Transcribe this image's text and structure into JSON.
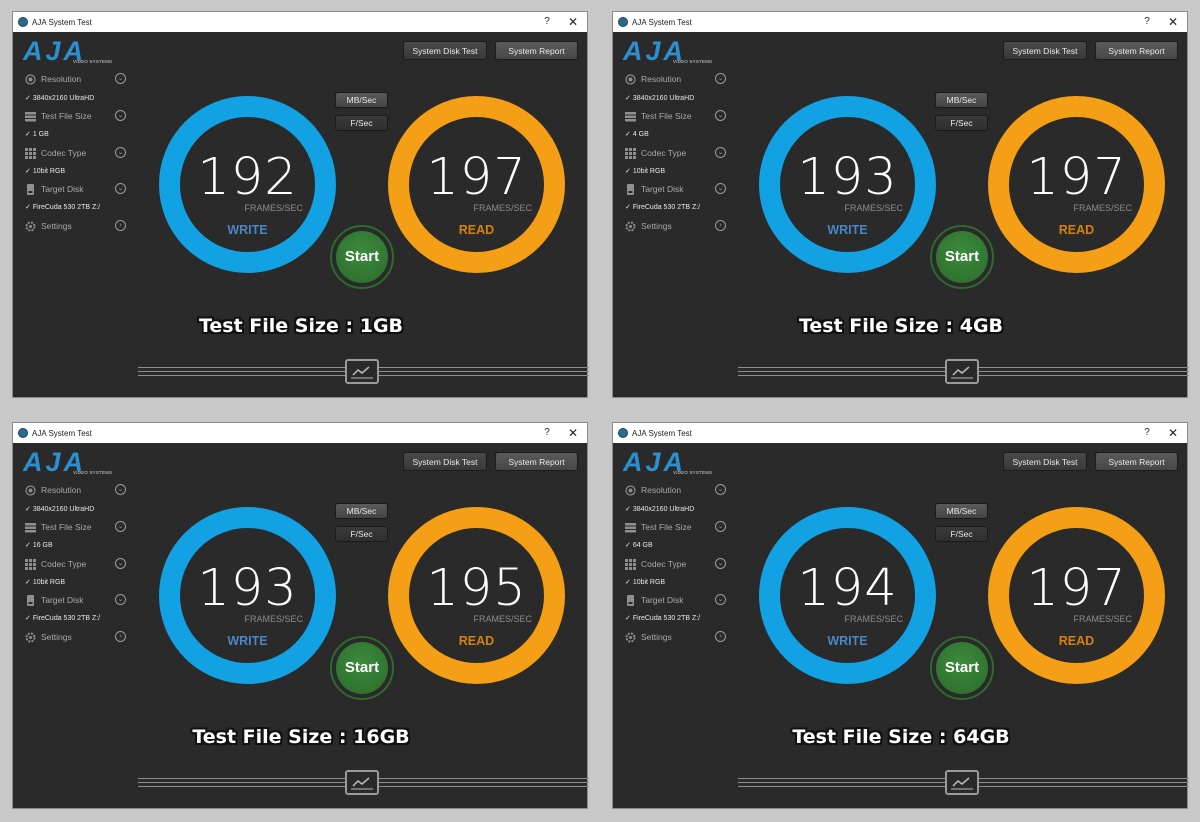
{
  "app_title": "AJA System Test",
  "window_controls": {
    "help": "?",
    "close": "✕"
  },
  "logo": {
    "text": "AJA",
    "subtext": "VIDEO SYSTEMS"
  },
  "toolbar": {
    "disk_test": "System Disk Test",
    "report": "System Report"
  },
  "units": {
    "mb": "MB/Sec",
    "f": "F/Sec"
  },
  "gauges": {
    "fps_label": "FRAMES/SEC",
    "write_label": "WRITE",
    "read_label": "READ"
  },
  "start_label": "Start",
  "sidebar_labels": {
    "resolution": "Resolution",
    "file_size": "Test File Size",
    "codec": "Codec Type",
    "disk": "Target Disk",
    "settings": "Settings"
  },
  "icons": {
    "resolution": "aperture-icon",
    "file_size": "stack-icon",
    "codec": "grid-icon",
    "disk": "disk-icon",
    "settings": "gear-icon",
    "expand": "chevron-down-icon",
    "navigate": "chevron-right-icon",
    "graph": "line-graph-icon"
  },
  "colors": {
    "write": "#12a2e3",
    "read": "#f59f17",
    "start": "#2e7d32"
  },
  "windows": [
    {
      "resolution_value": "3840x2160 UltraHD",
      "file_size_value": "1 GB",
      "codec_value": "10bit RGB",
      "disk_value": "FireCuda 530 2TB Z:/",
      "write": "192",
      "read": "197",
      "caption": "Test File Size : 1GB"
    },
    {
      "resolution_value": "3840x2160 UltraHD",
      "file_size_value": "4 GB",
      "codec_value": "10bit RGB",
      "disk_value": "FireCuda 530 2TB Z:/",
      "write": "193",
      "read": "197",
      "caption": "Test File Size : 4GB"
    },
    {
      "resolution_value": "3840x2160 UltraHD",
      "file_size_value": "16 GB",
      "codec_value": "10bit RGB",
      "disk_value": "FireCuda 530 2TB Z:/",
      "write": "193",
      "read": "195",
      "caption": "Test File Size : 16GB"
    },
    {
      "resolution_value": "3840x2160 UltraHD",
      "file_size_value": "64 GB",
      "codec_value": "10bit RGB",
      "disk_value": "FireCuda 530 2TB Z:/",
      "write": "194",
      "read": "197",
      "caption": "Test File Size : 64GB"
    }
  ]
}
